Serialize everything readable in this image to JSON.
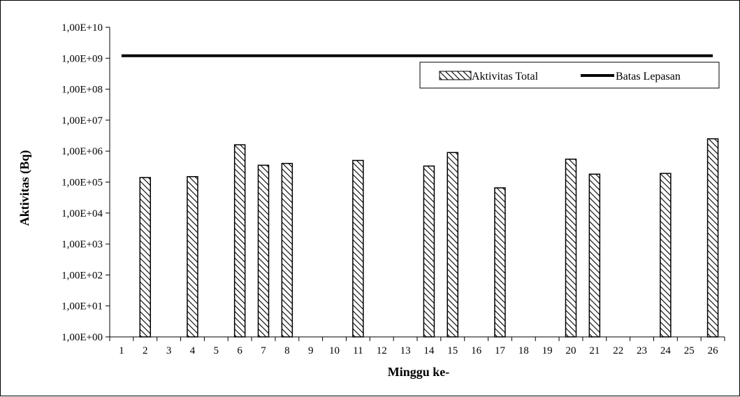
{
  "chart_data": {
    "type": "bar",
    "xlabel": "Minggu ke-",
    "ylabel": "Aktivitas (Bq)",
    "y_scale": "log",
    "ylim": [
      1,
      10000000000
    ],
    "y_tick_values": [
      1,
      10,
      100,
      1000,
      10000,
      100000,
      1000000,
      10000000,
      100000000,
      1000000000,
      10000000000
    ],
    "y_tick_labels": [
      "1,00E+00",
      "1,00E+01",
      "1,00E+02",
      "1,00E+03",
      "1,00E+04",
      "1,00E+05",
      "1,00E+06",
      "1,00E+07",
      "1,00E+08",
      "1,00E+09",
      "1,00E+10"
    ],
    "categories": [
      "1",
      "2",
      "3",
      "4",
      "5",
      "6",
      "7",
      "8",
      "9",
      "10",
      "11",
      "12",
      "13",
      "14",
      "15",
      "16",
      "17",
      "18",
      "19",
      "20",
      "21",
      "22",
      "23",
      "24",
      "25",
      "26"
    ],
    "series": [
      {
        "name": "Aktivitas Total",
        "type": "bar",
        "pattern": "diagonal-hatch",
        "values": [
          null,
          140000,
          null,
          150000,
          null,
          1600000,
          350000,
          400000,
          null,
          null,
          500000,
          null,
          null,
          330000,
          900000,
          null,
          65000,
          null,
          null,
          550000,
          180000,
          null,
          null,
          190000,
          null,
          2500000
        ]
      },
      {
        "name": "Batas Lepasan",
        "type": "line",
        "value": 1200000000
      }
    ],
    "legend": {
      "position": "top-right"
    },
    "grid": false,
    "colors": {
      "bar_fill": "#ffffff",
      "hatch": "#000000",
      "line": "#000000"
    }
  }
}
